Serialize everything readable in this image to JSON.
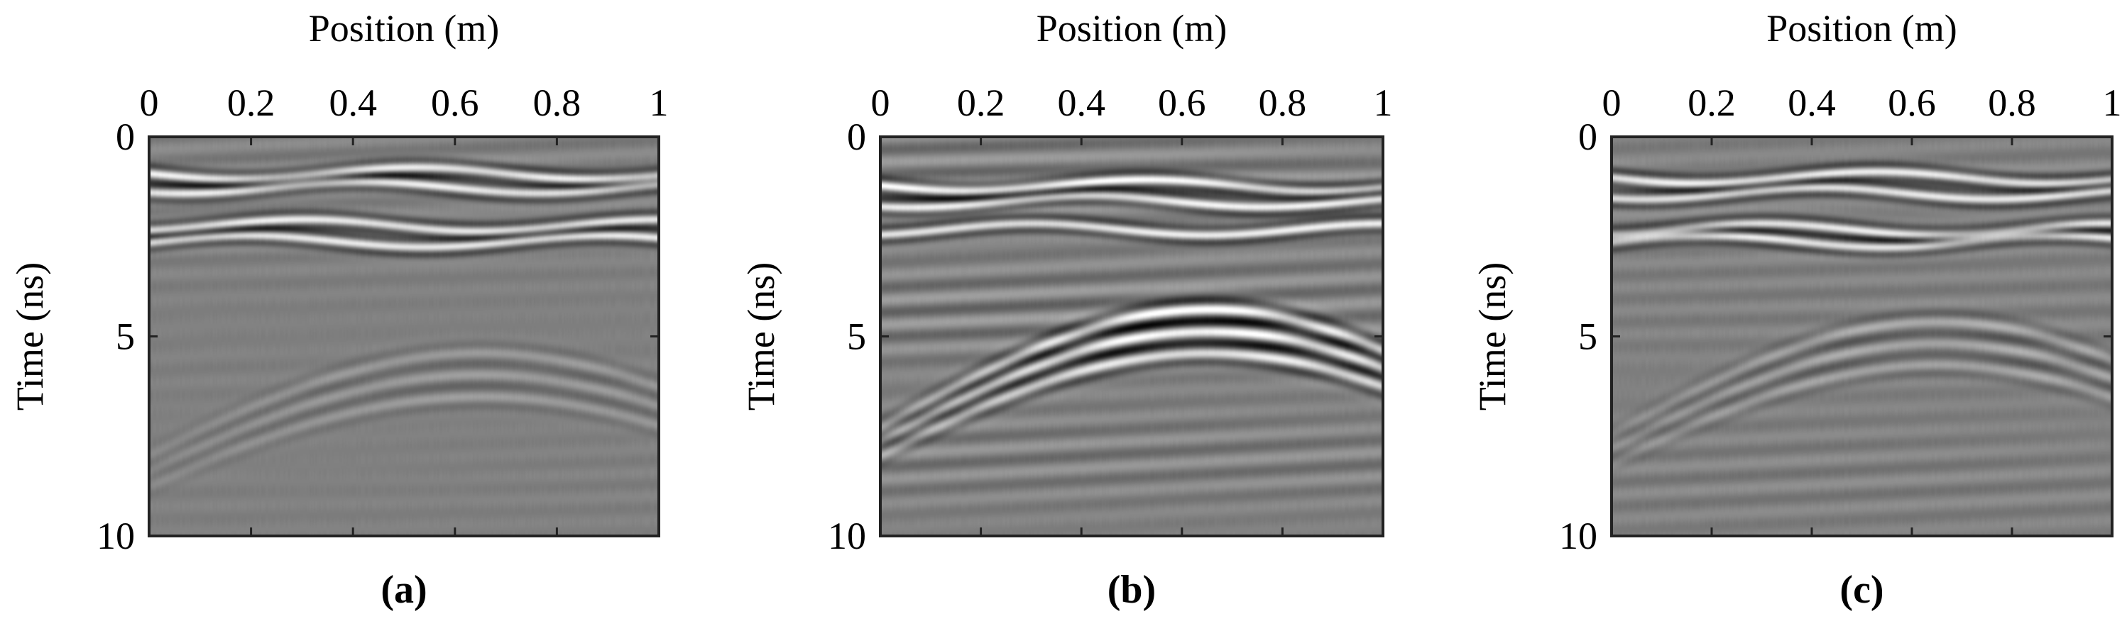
{
  "chart_data": [
    {
      "type": "heatmap",
      "panel_label": "(a)",
      "xlabel": "Position (m)",
      "ylabel": "Time (ns)",
      "xlim": [
        0,
        1
      ],
      "ylim": [
        0,
        10
      ],
      "xticks": [
        0,
        0.2,
        0.4,
        0.6,
        0.8,
        1
      ],
      "xtick_labels": [
        "0",
        "0.2",
        "0.4",
        "0.6",
        "0.8",
        "1"
      ],
      "yticks": [
        0,
        5,
        10
      ],
      "ytick_labels": [
        "0",
        "5",
        "10"
      ],
      "x_axis_position": "top",
      "y_axis_reversed": true,
      "colormap": "grayscale",
      "description_values": {
        "horizontal_reflections_ns": [
          0.9,
          1.25,
          2.2,
          2.6
        ],
        "hyperbola_apex": [
          0.65,
          5.4
        ],
        "hyperbola_strength": 0.25,
        "noise_level": 0.15
      }
    },
    {
      "type": "heatmap",
      "panel_label": "(b)",
      "xlabel": "Position (m)",
      "ylabel": "Time (ns)",
      "xlim": [
        0,
        1
      ],
      "ylim": [
        0,
        10
      ],
      "xticks": [
        0,
        0.2,
        0.4,
        0.6,
        0.8,
        1
      ],
      "xtick_labels": [
        "0",
        "0.2",
        "0.4",
        "0.6",
        "0.8",
        "1"
      ],
      "yticks": [
        0,
        5,
        10
      ],
      "ytick_labels": [
        "0",
        "5",
        "10"
      ],
      "x_axis_position": "top",
      "y_axis_reversed": true,
      "colormap": "grayscale",
      "description_values": {
        "horizontal_reflections_ns": [
          1.2,
          1.6,
          2.3
        ],
        "hyperbola_apex": [
          0.65,
          4.3
        ],
        "hyperbola_strength": 0.9,
        "noise_level": 0.45
      }
    },
    {
      "type": "heatmap",
      "panel_label": "(c)",
      "xlabel": "Position (m)",
      "ylabel": "Time (ns)",
      "xlim": [
        0,
        1
      ],
      "ylim": [
        0,
        10
      ],
      "xticks": [
        0,
        0.2,
        0.4,
        0.6,
        0.8,
        1
      ],
      "xtick_labels": [
        "0",
        "0.2",
        "0.4",
        "0.6",
        "0.8",
        "1"
      ],
      "yticks": [
        0,
        5,
        10
      ],
      "ytick_labels": [
        "0",
        "5",
        "10"
      ],
      "x_axis_position": "top",
      "y_axis_reversed": true,
      "colormap": "grayscale",
      "description_values": {
        "horizontal_reflections_ns": [
          1.0,
          1.4,
          2.3,
          2.6
        ],
        "hyperbola_apex": [
          0.65,
          4.6
        ],
        "hyperbola_strength": 0.35,
        "noise_level": 0.2
      }
    }
  ]
}
